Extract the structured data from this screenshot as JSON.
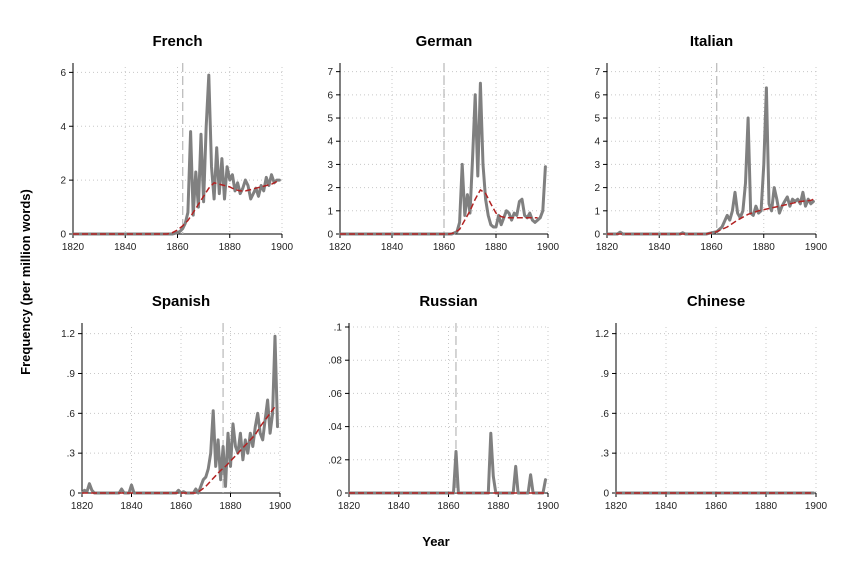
{
  "figure": {
    "ylabel": "Frequency (per million words)",
    "xlabel": "Year",
    "colors": {
      "series": "#808080",
      "trend": "#b22222",
      "marker_line": "#b8b8b8",
      "grid": "#c8c8c8",
      "axis": "#000000"
    }
  },
  "chart_data": [
    {
      "type": "line",
      "title": "French",
      "xlim": [
        1820,
        1900
      ],
      "ylim": [
        0,
        6.2
      ],
      "xticks": [
        1820,
        1840,
        1860,
        1880,
        1900
      ],
      "yticks": [
        0,
        2,
        4,
        6
      ],
      "ytick_labels": [
        "0",
        "2",
        "4",
        "6"
      ],
      "grid": true,
      "vline": 1862,
      "series": [
        {
          "style": "solid",
          "x": [
            1820,
            1858,
            1860,
            1861,
            1862,
            1863,
            1864,
            1865,
            1866,
            1867,
            1868,
            1869,
            1870,
            1871,
            1872,
            1873,
            1874,
            1875,
            1876,
            1877,
            1878,
            1879,
            1880,
            1881,
            1882,
            1883,
            1884,
            1885,
            1886,
            1887,
            1888,
            1889,
            1890,
            1891,
            1892,
            1893,
            1894,
            1895,
            1896,
            1897,
            1898,
            1899
          ],
          "values": [
            0,
            0,
            0.05,
            0.1,
            0.2,
            0.4,
            0.8,
            3.8,
            0.7,
            2.3,
            1.0,
            3.7,
            1.2,
            4.0,
            5.9,
            2.5,
            1.3,
            3.2,
            1.5,
            2.8,
            1.3,
            2.5,
            2.0,
            2.2,
            1.6,
            1.9,
            1.5,
            1.7,
            2.0,
            1.8,
            1.3,
            1.5,
            1.7,
            1.4,
            1.8,
            1.6,
            2.1,
            1.8,
            2.2,
            1.9,
            2.0,
            2.0
          ]
        },
        {
          "style": "dashed",
          "x": [
            1820,
            1856,
            1858,
            1860,
            1862,
            1864,
            1866,
            1868,
            1870,
            1872,
            1874,
            1876,
            1878,
            1880,
            1882,
            1884,
            1886,
            1888,
            1890,
            1892,
            1894,
            1896,
            1898,
            1899
          ],
          "values": [
            0,
            0,
            0.05,
            0.15,
            0.3,
            0.5,
            0.8,
            1.1,
            1.4,
            1.7,
            1.9,
            1.85,
            1.8,
            1.75,
            1.65,
            1.6,
            1.6,
            1.65,
            1.7,
            1.75,
            1.8,
            1.85,
            1.95,
            2.0
          ]
        }
      ]
    },
    {
      "type": "line",
      "title": "German",
      "xlim": [
        1820,
        1900
      ],
      "ylim": [
        0,
        7.2
      ],
      "xticks": [
        1820,
        1840,
        1860,
        1880,
        1900
      ],
      "yticks": [
        0,
        1,
        2,
        3,
        4,
        5,
        6,
        7
      ],
      "ytick_labels": [
        "0",
        "1",
        "2",
        "3",
        "4",
        "5",
        "6",
        "7"
      ],
      "grid": true,
      "vline": 1860,
      "series": [
        {
          "style": "solid",
          "x": [
            1820,
            1863,
            1865,
            1866,
            1867,
            1868,
            1869,
            1870,
            1871,
            1872,
            1873,
            1874,
            1875,
            1876,
            1877,
            1878,
            1879,
            1880,
            1881,
            1882,
            1883,
            1884,
            1885,
            1886,
            1887,
            1888,
            1889,
            1890,
            1891,
            1892,
            1893,
            1894,
            1895,
            1896,
            1897,
            1898,
            1899
          ],
          "values": [
            0,
            0,
            0.1,
            0.5,
            3.0,
            0.8,
            1.7,
            0.9,
            3.3,
            6.0,
            2.5,
            6.5,
            3.0,
            1.5,
            0.8,
            0.4,
            0.3,
            0.3,
            0.8,
            0.4,
            0.7,
            1.0,
            0.9,
            0.6,
            0.9,
            0.8,
            1.4,
            1.5,
            0.8,
            0.7,
            0.9,
            0.6,
            0.5,
            0.6,
            0.7,
            1.0,
            2.9
          ]
        },
        {
          "style": "dashed",
          "x": [
            1820,
            1862,
            1864,
            1866,
            1868,
            1870,
            1872,
            1874,
            1876,
            1878,
            1880,
            1882,
            1884,
            1886,
            1888,
            1890,
            1892,
            1894,
            1896
          ],
          "values": [
            0,
            0,
            0.05,
            0.2,
            0.6,
            1.0,
            1.5,
            1.9,
            1.75,
            1.3,
            0.9,
            0.75,
            0.7,
            0.7,
            0.7,
            0.7,
            0.7,
            0.7,
            0.7
          ]
        }
      ]
    },
    {
      "type": "line",
      "title": "Italian",
      "xlim": [
        1820,
        1900
      ],
      "ylim": [
        0,
        7.2
      ],
      "xticks": [
        1820,
        1840,
        1860,
        1880,
        1900
      ],
      "yticks": [
        0,
        1,
        2,
        3,
        4,
        5,
        6,
        7
      ],
      "ytick_labels": [
        "0",
        "1",
        "2",
        "3",
        "4",
        "5",
        "6",
        "7"
      ],
      "grid": true,
      "vline": 1862,
      "series": [
        {
          "style": "solid",
          "x": [
            1820,
            1824,
            1825,
            1826,
            1848,
            1849,
            1850,
            1858,
            1860,
            1862,
            1864,
            1866,
            1867,
            1868,
            1869,
            1870,
            1871,
            1872,
            1873,
            1874,
            1875,
            1876,
            1877,
            1878,
            1879,
            1880,
            1881,
            1882,
            1883,
            1884,
            1885,
            1886,
            1887,
            1888,
            1889,
            1890,
            1891,
            1892,
            1893,
            1894,
            1895,
            1896,
            1897,
            1898,
            1899
          ],
          "values": [
            0,
            0,
            0.08,
            0,
            0,
            0.05,
            0,
            0,
            0.05,
            0.1,
            0.3,
            0.8,
            0.6,
            1.0,
            1.8,
            0.9,
            0.7,
            1.0,
            2.2,
            5.0,
            0.9,
            0.8,
            1.2,
            0.9,
            1.0,
            3.0,
            6.3,
            1.3,
            1.0,
            2.0,
            1.5,
            0.9,
            1.2,
            1.4,
            1.6,
            1.2,
            1.5,
            1.4,
            1.5,
            1.3,
            1.8,
            1.2,
            1.5,
            1.3,
            1.4
          ]
        },
        {
          "style": "dashed",
          "x": [
            1820,
            1858,
            1862,
            1866,
            1870,
            1874,
            1878,
            1882,
            1886,
            1890,
            1894,
            1898,
            1899
          ],
          "values": [
            0,
            0,
            0.1,
            0.3,
            0.6,
            0.85,
            1.0,
            1.1,
            1.2,
            1.3,
            1.4,
            1.45,
            1.5
          ]
        }
      ]
    },
    {
      "type": "line",
      "title": "Spanish",
      "xlim": [
        1820,
        1900
      ],
      "ylim": [
        0,
        1.25
      ],
      "xticks": [
        1820,
        1840,
        1860,
        1880,
        1900
      ],
      "yticks": [
        0,
        0.3,
        0.6,
        0.9,
        1.2
      ],
      "ytick_labels": [
        "0",
        ".3",
        ".6",
        ".9",
        "1.2"
      ],
      "grid": true,
      "vline": 1877,
      "series": [
        {
          "style": "solid",
          "x": [
            1820,
            1821,
            1822,
            1823,
            1824,
            1825,
            1835,
            1836,
            1837,
            1839,
            1840,
            1841,
            1858,
            1859,
            1860,
            1861,
            1862,
            1865,
            1866,
            1867,
            1868,
            1869,
            1870,
            1871,
            1872,
            1873,
            1874,
            1875,
            1876,
            1877,
            1878,
            1879,
            1880,
            1881,
            1882,
            1883,
            1884,
            1885,
            1886,
            1887,
            1888,
            1889,
            1890,
            1891,
            1892,
            1893,
            1894,
            1895,
            1896,
            1897,
            1898,
            1899
          ],
          "values": [
            0,
            0.02,
            0.01,
            0.07,
            0.02,
            0,
            0,
            0.03,
            0,
            0,
            0.06,
            0,
            0,
            0.02,
            0,
            0.01,
            0,
            0,
            0.03,
            0,
            0.05,
            0.1,
            0.12,
            0.18,
            0.3,
            0.62,
            0.2,
            0.4,
            0.1,
            0.35,
            0.05,
            0.45,
            0.2,
            0.52,
            0.35,
            0.3,
            0.45,
            0.25,
            0.4,
            0.3,
            0.45,
            0.35,
            0.5,
            0.6,
            0.45,
            0.4,
            0.55,
            0.7,
            0.45,
            0.6,
            1.18,
            0.5
          ]
        },
        {
          "style": "dashed",
          "x": [
            1820,
            1866,
            1868,
            1870,
            1872,
            1874,
            1876,
            1878,
            1880,
            1882,
            1884,
            1886,
            1888,
            1890,
            1892,
            1894,
            1896,
            1898
          ],
          "values": [
            0,
            0,
            0.02,
            0.05,
            0.09,
            0.13,
            0.17,
            0.2,
            0.24,
            0.28,
            0.32,
            0.36,
            0.4,
            0.44,
            0.5,
            0.55,
            0.6,
            0.65
          ]
        }
      ]
    },
    {
      "type": "line",
      "title": "Russian",
      "xlim": [
        1820,
        1900
      ],
      "ylim": [
        0,
        0.1
      ],
      "xticks": [
        1820,
        1840,
        1860,
        1880,
        1900
      ],
      "yticks": [
        0,
        0.02,
        0.04,
        0.06,
        0.08,
        0.1
      ],
      "ytick_labels": [
        "0",
        ".02",
        ".04",
        ".06",
        ".08",
        ".1"
      ],
      "grid": true,
      "vline": 1863,
      "series": [
        {
          "style": "solid",
          "x": [
            1820,
            1862,
            1863,
            1864,
            1876,
            1877,
            1878,
            1879,
            1886,
            1887,
            1888,
            1892,
            1893,
            1894,
            1898,
            1899
          ],
          "values": [
            0,
            0,
            0.025,
            0,
            0,
            0.036,
            0.01,
            0,
            0,
            0.016,
            0,
            0,
            0.011,
            0,
            0,
            0.008
          ]
        },
        {
          "style": "dashed",
          "x": [
            1820,
            1899
          ],
          "values": [
            0,
            0
          ]
        }
      ]
    },
    {
      "type": "line",
      "title": "Chinese",
      "xlim": [
        1820,
        1900
      ],
      "ylim": [
        0,
        1.25
      ],
      "xticks": [
        1820,
        1840,
        1860,
        1880,
        1900
      ],
      "yticks": [
        0,
        0.3,
        0.6,
        0.9,
        1.2
      ],
      "ytick_labels": [
        "0",
        ".3",
        ".6",
        ".9",
        "1.2"
      ],
      "grid": true,
      "vline": null,
      "series": [
        {
          "style": "solid",
          "x": [
            1820,
            1899
          ],
          "values": [
            0,
            0
          ]
        },
        {
          "style": "dashed",
          "x": [
            1820,
            1899
          ],
          "values": [
            0,
            0
          ]
        }
      ]
    }
  ]
}
